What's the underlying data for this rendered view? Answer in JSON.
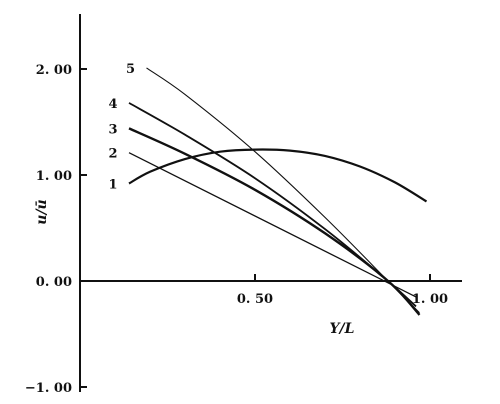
{
  "chart_data": {
    "type": "line",
    "xlabel": "Y/L",
    "ylabel": "u/ū",
    "xlim": [
      0.0,
      1.05
    ],
    "ylim": [
      -1.0,
      2.5
    ],
    "x_ticks": [
      {
        "value": 0.5,
        "label": "0. 50"
      },
      {
        "value": 1.0,
        "label": "1. 00"
      }
    ],
    "y_ticks": [
      {
        "value": 2.0,
        "label": "2. 00"
      },
      {
        "value": 1.0,
        "label": "1. 00"
      },
      {
        "value": 0.0,
        "label": "0. 00"
      },
      {
        "value": -1.0,
        "label": "−1. 00"
      }
    ],
    "grid": false,
    "legend": "none",
    "series": [
      {
        "name": "1",
        "color": "#111111",
        "points": [
          [
            0.14,
            0.92
          ],
          [
            0.2,
            1.03
          ],
          [
            0.3,
            1.15
          ],
          [
            0.4,
            1.22
          ],
          [
            0.5,
            1.24
          ],
          [
            0.6,
            1.23
          ],
          [
            0.7,
            1.18
          ],
          [
            0.8,
            1.08
          ],
          [
            0.9,
            0.93
          ],
          [
            0.99,
            0.75
          ]
        ]
      },
      {
        "name": "2",
        "color": "#111111",
        "points": [
          [
            0.14,
            1.21
          ],
          [
            0.96,
            -0.15
          ]
        ]
      },
      {
        "name": "3",
        "color": "#111111",
        "points": [
          [
            0.14,
            1.44
          ],
          [
            0.3,
            1.2
          ],
          [
            0.5,
            0.86
          ],
          [
            0.7,
            0.45
          ],
          [
            0.88,
            0.0
          ],
          [
            0.97,
            -0.32
          ]
        ]
      },
      {
        "name": "4",
        "color": "#111111",
        "points": [
          [
            0.14,
            1.68
          ],
          [
            0.3,
            1.38
          ],
          [
            0.5,
            0.97
          ],
          [
            0.7,
            0.49
          ],
          [
            0.88,
            0.0
          ],
          [
            0.96,
            -0.24
          ]
        ]
      },
      {
        "name": "5",
        "color": "#111111",
        "points": [
          [
            0.19,
            2.01
          ],
          [
            0.3,
            1.76
          ],
          [
            0.5,
            1.22
          ],
          [
            0.7,
            0.6
          ],
          [
            0.88,
            0.0
          ],
          [
            0.97,
            -0.3
          ]
        ]
      }
    ]
  }
}
